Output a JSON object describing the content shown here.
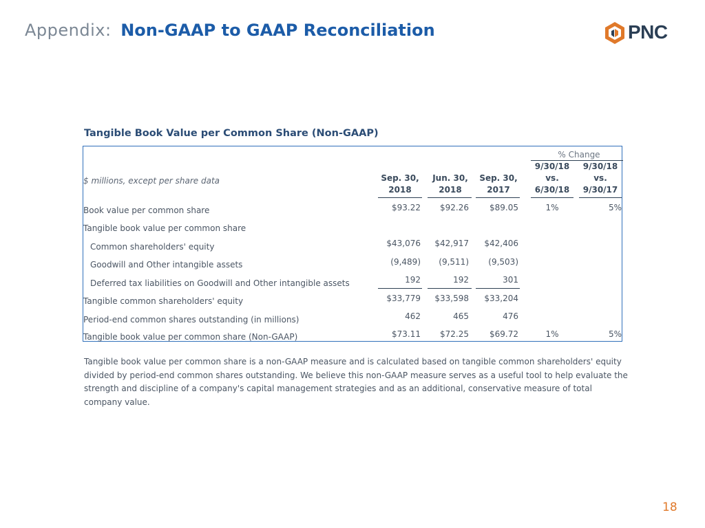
{
  "header": {
    "prefix": "Appendix:",
    "title": "Non-GAAP to GAAP Reconciliation",
    "logo_text": "PNC"
  },
  "section_title": "Tangible Book Value per Common Share (Non-GAAP)",
  "table": {
    "units_label": "$ millions, except per share data",
    "pct_change_label": "% Change",
    "columns": [
      {
        "line1": "Sep. 30,",
        "line2": "2018"
      },
      {
        "line1": "Jun. 30,",
        "line2": "2018"
      },
      {
        "line1": "Sep. 30,",
        "line2": "2017"
      },
      {
        "line1": "9/30/18",
        "line2": "vs.",
        "line3": "6/30/18"
      },
      {
        "line1": "9/30/18",
        "line2": "vs.",
        "line3": "9/30/17"
      }
    ],
    "rows": [
      {
        "label": "Book value per common share",
        "values": [
          "$93.22",
          "$92.26",
          "$89.05",
          "1%",
          "5%"
        ]
      },
      {
        "label": "Tangible book value per common share",
        "values": [
          "",
          "",
          "",
          "",
          ""
        ]
      },
      {
        "label": "Common shareholders' equity",
        "values": [
          "$43,076",
          "$42,917",
          "$42,406",
          "",
          ""
        ]
      },
      {
        "label": "Goodwill and Other intangible assets",
        "values": [
          "(9,489)",
          "(9,511)",
          "(9,503)",
          "",
          ""
        ]
      },
      {
        "label": "Deferred tax liabilities on Goodwill and Other intangible assets",
        "values": [
          "192",
          "192",
          "301",
          "",
          ""
        ]
      },
      {
        "label": "Tangible common shareholders' equity",
        "values": [
          "$33,779",
          "$33,598",
          "$33,204",
          "",
          ""
        ]
      },
      {
        "label": "Period-end common shares outstanding (in millions)",
        "values": [
          "462",
          "465",
          "476",
          "",
          ""
        ]
      },
      {
        "label": "Tangible book value per common share (Non-GAAP)",
        "values": [
          "$73.11",
          "$72.25",
          "$69.72",
          "1%",
          "5%"
        ]
      }
    ]
  },
  "footnote": "Tangible book value per common share is a non-GAAP measure and is calculated based on tangible common shareholders' equity divided by period-end common shares outstanding. We believe this non-GAAP measure serves as a useful tool to help evaluate the strength and discipline of a company's capital management strategies and as an additional, conservative measure of total company value.",
  "page_number": "18",
  "colors": {
    "title_blue": "#1c5ca8",
    "logo_orange": "#e0792a",
    "table_border": "#2f6fba"
  }
}
